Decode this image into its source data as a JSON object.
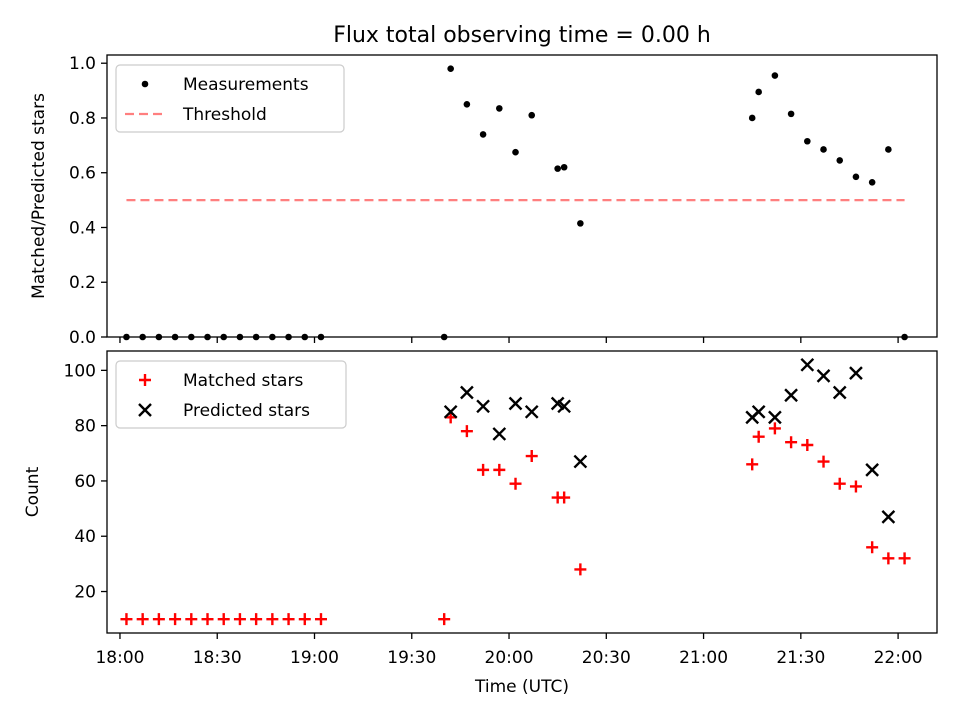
{
  "title": "Flux total observing time = 0.00 h",
  "chart_data": [
    {
      "type": "scatter",
      "ylabel": "Matched/Predicted stars",
      "xlim": [
        "17:56",
        "22:12"
      ],
      "ylim": [
        0,
        1.03
      ],
      "y_ticks": [
        0.0,
        0.2,
        0.4,
        0.6,
        0.8,
        1.0
      ],
      "y_tick_labels": [
        "0.0",
        "0.2",
        "0.4",
        "0.6",
        "0.8",
        "1.0"
      ],
      "legend_position": "top-left",
      "legend": [
        "Measurements",
        "Threshold"
      ],
      "series": [
        {
          "name": "Measurements",
          "color": "#000000",
          "marker": "dot",
          "points": [
            [
              "18:02",
              0
            ],
            [
              "18:07",
              0
            ],
            [
              "18:12",
              0
            ],
            [
              "18:17",
              0
            ],
            [
              "18:22",
              0
            ],
            [
              "18:27",
              0
            ],
            [
              "18:32",
              0
            ],
            [
              "18:37",
              0
            ],
            [
              "18:42",
              0
            ],
            [
              "18:47",
              0
            ],
            [
              "18:52",
              0
            ],
            [
              "18:57",
              0
            ],
            [
              "19:02",
              0
            ],
            [
              "19:40",
              0
            ],
            [
              "19:42",
              0.98
            ],
            [
              "19:47",
              0.85
            ],
            [
              "19:52",
              0.74
            ],
            [
              "19:57",
              0.835
            ],
            [
              "20:02",
              0.675
            ],
            [
              "20:07",
              0.81
            ],
            [
              "20:15",
              0.615
            ],
            [
              "20:17",
              0.62
            ],
            [
              "20:22",
              0.415
            ],
            [
              "21:15",
              0.8
            ],
            [
              "21:17",
              0.895
            ],
            [
              "21:22",
              0.955
            ],
            [
              "21:27",
              0.815
            ],
            [
              "21:32",
              0.715
            ],
            [
              "21:37",
              0.685
            ],
            [
              "21:42",
              0.645
            ],
            [
              "21:47",
              0.585
            ],
            [
              "21:52",
              0.565
            ],
            [
              "21:57",
              0.685
            ],
            [
              "22:02",
              0
            ]
          ]
        },
        {
          "name": "Threshold",
          "color": "#ff7f7f",
          "style": "dashed",
          "points": [
            [
              "18:02",
              0.5
            ],
            [
              "22:02",
              0.5
            ]
          ]
        }
      ]
    },
    {
      "type": "scatter",
      "xlabel": "Time (UTC)",
      "ylabel": "Count",
      "xlim": [
        "17:56",
        "22:12"
      ],
      "ylim": [
        5,
        107
      ],
      "x_ticks": [
        "18:00",
        "18:30",
        "19:00",
        "19:30",
        "20:00",
        "20:30",
        "21:00",
        "21:30",
        "22:00"
      ],
      "x_tick_labels": [
        "18:00",
        "18:30",
        "19:00",
        "19:30",
        "20:00",
        "20:30",
        "21:00",
        "21:30",
        "22:00"
      ],
      "y_ticks": [
        20,
        40,
        60,
        80,
        100
      ],
      "y_tick_labels": [
        "20",
        "40",
        "60",
        "80",
        "100"
      ],
      "legend_position": "top-left",
      "legend": [
        "Matched stars",
        "Predicted stars"
      ],
      "series": [
        {
          "name": "Matched stars",
          "color": "#ff0000",
          "marker": "plus",
          "points": [
            [
              "18:02",
              10
            ],
            [
              "18:07",
              10
            ],
            [
              "18:12",
              10
            ],
            [
              "18:17",
              10
            ],
            [
              "18:22",
              10
            ],
            [
              "18:27",
              10
            ],
            [
              "18:32",
              10
            ],
            [
              "18:37",
              10
            ],
            [
              "18:42",
              10
            ],
            [
              "18:47",
              10
            ],
            [
              "18:52",
              10
            ],
            [
              "18:57",
              10
            ],
            [
              "19:02",
              10
            ],
            [
              "19:40",
              10
            ],
            [
              "19:42",
              83
            ],
            [
              "19:47",
              78
            ],
            [
              "19:52",
              64
            ],
            [
              "19:57",
              64
            ],
            [
              "20:02",
              59
            ],
            [
              "20:07",
              69
            ],
            [
              "20:15",
              54
            ],
            [
              "20:17",
              54
            ],
            [
              "20:22",
              28
            ],
            [
              "21:15",
              66
            ],
            [
              "21:17",
              76
            ],
            [
              "21:22",
              79
            ],
            [
              "21:27",
              74
            ],
            [
              "21:32",
              73
            ],
            [
              "21:37",
              67
            ],
            [
              "21:42",
              59
            ],
            [
              "21:47",
              58
            ],
            [
              "21:52",
              36
            ],
            [
              "21:57",
              32
            ],
            [
              "22:02",
              32
            ]
          ]
        },
        {
          "name": "Predicted stars",
          "color": "#000000",
          "marker": "x",
          "points": [
            [
              "19:42",
              85
            ],
            [
              "19:47",
              92
            ],
            [
              "19:52",
              87
            ],
            [
              "19:57",
              77
            ],
            [
              "20:02",
              88
            ],
            [
              "20:07",
              85
            ],
            [
              "20:15",
              88
            ],
            [
              "20:17",
              87
            ],
            [
              "20:22",
              67
            ],
            [
              "21:15",
              83
            ],
            [
              "21:17",
              85
            ],
            [
              "21:22",
              83
            ],
            [
              "21:27",
              91
            ],
            [
              "21:32",
              102
            ],
            [
              "21:37",
              98
            ],
            [
              "21:42",
              92
            ],
            [
              "21:47",
              99
            ],
            [
              "21:52",
              64
            ],
            [
              "21:57",
              47
            ]
          ]
        }
      ]
    }
  ]
}
